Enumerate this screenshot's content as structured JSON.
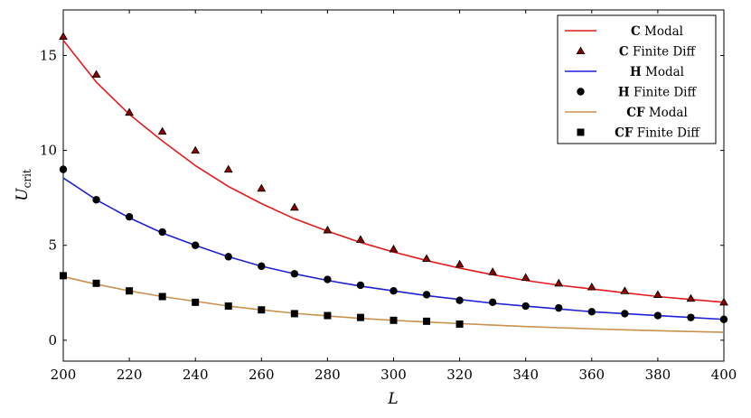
{
  "chart_data": {
    "type": "line",
    "xlabel": "L",
    "ylabel": {
      "main": "U",
      "sub": "crit"
    },
    "xlim": [
      200,
      400
    ],
    "ylim": [
      -1.1,
      17.4
    ],
    "xticks": [
      200,
      220,
      240,
      260,
      280,
      300,
      320,
      340,
      360,
      380,
      400
    ],
    "yticks": [
      0,
      5,
      10,
      15
    ],
    "grid": false,
    "legend_position": "top-right",
    "series": [
      {
        "id": "c-modal",
        "name": {
          "bold": "C",
          "rest": "Modal"
        },
        "kind": "line",
        "color": "#e41a1c",
        "x": [
          200,
          210,
          220,
          230,
          240,
          250,
          260,
          270,
          280,
          290,
          300,
          310,
          320,
          330,
          340,
          350,
          360,
          370,
          380,
          390,
          400
        ],
        "y": [
          15.8,
          13.6,
          11.9,
          10.5,
          9.2,
          8.1,
          7.2,
          6.4,
          5.75,
          5.15,
          4.65,
          4.2,
          3.8,
          3.45,
          3.15,
          2.9,
          2.7,
          2.5,
          2.3,
          2.15,
          2.0
        ]
      },
      {
        "id": "c-fd",
        "name": {
          "bold": "C",
          "rest": "Finite Diff"
        },
        "kind": "marker",
        "marker": "triangle",
        "color": "#8b0000",
        "x": [
          200,
          210,
          220,
          230,
          240,
          250,
          260,
          270,
          280,
          290,
          300,
          310,
          320,
          330,
          340,
          350,
          360,
          370,
          380,
          390,
          400
        ],
        "y": [
          16.0,
          14.0,
          12.0,
          11.0,
          10.0,
          9.0,
          8.0,
          7.0,
          5.8,
          5.3,
          4.8,
          4.3,
          4.0,
          3.6,
          3.3,
          3.0,
          2.8,
          2.6,
          2.4,
          2.2,
          2.0
        ]
      },
      {
        "id": "h-modal",
        "name": {
          "bold": "H",
          "rest": "Modal"
        },
        "kind": "line",
        "color": "#1f1fd6",
        "x": [
          200,
          210,
          220,
          230,
          240,
          250,
          260,
          270,
          280,
          290,
          300,
          310,
          320,
          330,
          340,
          350,
          360,
          370,
          380,
          390,
          400
        ],
        "y": [
          8.55,
          7.4,
          6.45,
          5.65,
          5.0,
          4.4,
          3.9,
          3.5,
          3.15,
          2.85,
          2.6,
          2.35,
          2.15,
          1.95,
          1.8,
          1.65,
          1.5,
          1.4,
          1.3,
          1.2,
          1.1
        ]
      },
      {
        "id": "h-fd",
        "name": {
          "bold": "H",
          "rest": "Finite Diff"
        },
        "kind": "marker",
        "marker": "circle",
        "color": "#000000",
        "x": [
          200,
          210,
          220,
          230,
          240,
          250,
          260,
          270,
          280,
          290,
          300,
          310,
          320,
          330,
          340,
          350,
          360,
          370,
          380,
          390,
          400
        ],
        "y": [
          9.0,
          7.4,
          6.5,
          5.7,
          5.0,
          4.4,
          3.9,
          3.5,
          3.2,
          2.9,
          2.6,
          2.4,
          2.1,
          2.0,
          1.8,
          1.7,
          1.5,
          1.4,
          1.3,
          1.2,
          1.1
        ]
      },
      {
        "id": "cf-modal",
        "name": {
          "bold": "CF",
          "rest": "Modal"
        },
        "kind": "line",
        "color": "#c8914e",
        "x": [
          200,
          210,
          220,
          230,
          240,
          250,
          260,
          270,
          280,
          290,
          300,
          310,
          320,
          330,
          340,
          350,
          360,
          370,
          380,
          390,
          400
        ],
        "y": [
          3.35,
          2.95,
          2.6,
          2.3,
          2.05,
          1.8,
          1.6,
          1.42,
          1.28,
          1.15,
          1.05,
          0.96,
          0.88,
          0.8,
          0.72,
          0.66,
          0.6,
          0.55,
          0.5,
          0.46,
          0.42
        ]
      },
      {
        "id": "cf-fd",
        "name": {
          "bold": "CF",
          "rest": "Finite Diff"
        },
        "kind": "marker",
        "marker": "square",
        "color": "#000000",
        "x": [
          200,
          210,
          220,
          230,
          240,
          250,
          260,
          270,
          280,
          290,
          300,
          310,
          320
        ],
        "y": [
          3.4,
          3.0,
          2.6,
          2.3,
          2.0,
          1.8,
          1.6,
          1.4,
          1.3,
          1.2,
          1.05,
          1.0,
          0.85
        ]
      }
    ]
  }
}
